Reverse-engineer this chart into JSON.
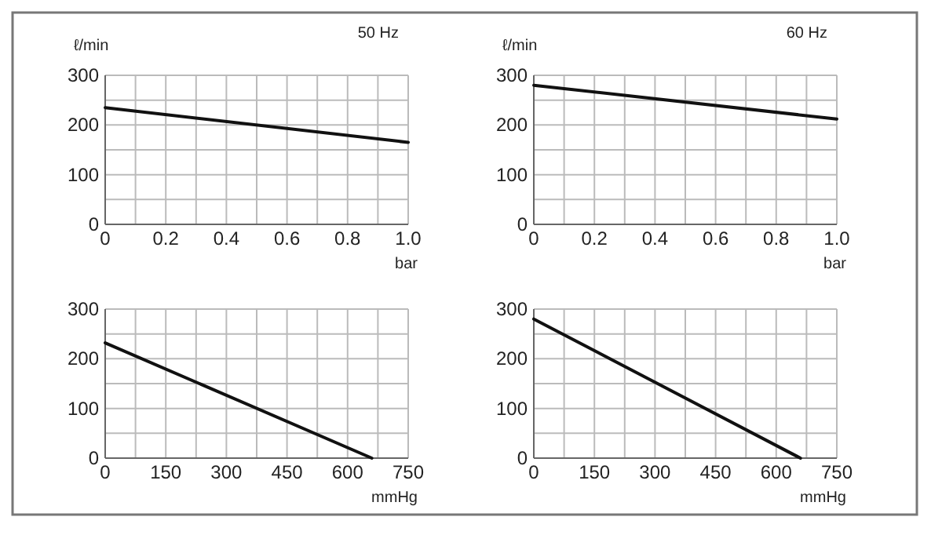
{
  "chart_data": [
    {
      "type": "line",
      "title": "50 Hz",
      "ylabel": "ℓ/min",
      "xlabel": "bar",
      "x": [
        0,
        1
      ],
      "series": [
        {
          "color": "#111111",
          "values": [
            235,
            165
          ]
        }
      ],
      "xlim": [
        0,
        1
      ],
      "ylim": [
        0,
        300
      ],
      "xticks": [
        0,
        {
          "value": 0.1,
          "label": null
        },
        0.2,
        {
          "value": 0.3,
          "label": null
        },
        0.4,
        {
          "value": 0.5,
          "label": null
        },
        0.6,
        {
          "value": 0.7,
          "label": null
        },
        0.8,
        {
          "value": 0.9,
          "label": null
        },
        {
          "value": 1,
          "label": "1.0"
        }
      ],
      "yticks": [
        0,
        {
          "value": 50,
          "label": null
        },
        100,
        {
          "value": 150,
          "label": null
        },
        200,
        {
          "value": 250,
          "label": null
        },
        300
      ],
      "grid": true
    },
    {
      "type": "line",
      "title": "60 Hz",
      "ylabel": "ℓ/min",
      "xlabel": "bar",
      "x": [
        0,
        1
      ],
      "series": [
        {
          "color": "#111111",
          "values": [
            280,
            212
          ]
        }
      ],
      "xlim": [
        0,
        1
      ],
      "ylim": [
        0,
        300
      ],
      "xticks": [
        0,
        {
          "value": 0.1,
          "label": null
        },
        0.2,
        {
          "value": 0.3,
          "label": null
        },
        0.4,
        {
          "value": 0.5,
          "label": null
        },
        0.6,
        {
          "value": 0.7,
          "label": null
        },
        0.8,
        {
          "value": 0.9,
          "label": null
        },
        {
          "value": 1,
          "label": "1.0"
        }
      ],
      "yticks": [
        0,
        {
          "value": 50,
          "label": null
        },
        100,
        {
          "value": 150,
          "label": null
        },
        200,
        {
          "value": 250,
          "label": null
        },
        300
      ],
      "grid": true
    },
    {
      "type": "line",
      "xlabel": "mmHg",
      "x": [
        0,
        660
      ],
      "series": [
        {
          "color": "#111111",
          "values": [
            232,
            0
          ]
        }
      ],
      "xlim": [
        0,
        750
      ],
      "ylim": [
        0,
        300
      ],
      "xticks": [
        0,
        {
          "value": 75,
          "label": null
        },
        150,
        {
          "value": 225,
          "label": null
        },
        300,
        {
          "value": 375,
          "label": null
        },
        450,
        {
          "value": 525,
          "label": null
        },
        600,
        {
          "value": 675,
          "label": null
        },
        750
      ],
      "yticks": [
        0,
        {
          "value": 50,
          "label": null
        },
        100,
        {
          "value": 150,
          "label": null
        },
        200,
        {
          "value": 250,
          "label": null
        },
        300
      ],
      "grid": true
    },
    {
      "type": "line",
      "xlabel": "mmHg",
      "x": [
        0,
        660
      ],
      "series": [
        {
          "color": "#111111",
          "values": [
            280,
            0
          ]
        }
      ],
      "xlim": [
        0,
        750
      ],
      "ylim": [
        0,
        300
      ],
      "xticks": [
        0,
        {
          "value": 75,
          "label": null
        },
        150,
        {
          "value": 225,
          "label": null
        },
        300,
        {
          "value": 375,
          "label": null
        },
        450,
        {
          "value": 525,
          "label": null
        },
        600,
        {
          "value": 675,
          "label": null
        },
        750
      ],
      "yticks": [
        0,
        {
          "value": 50,
          "label": null
        },
        100,
        {
          "value": 150,
          "label": null
        },
        200,
        {
          "value": 250,
          "label": null
        },
        300
      ],
      "grid": true
    }
  ]
}
